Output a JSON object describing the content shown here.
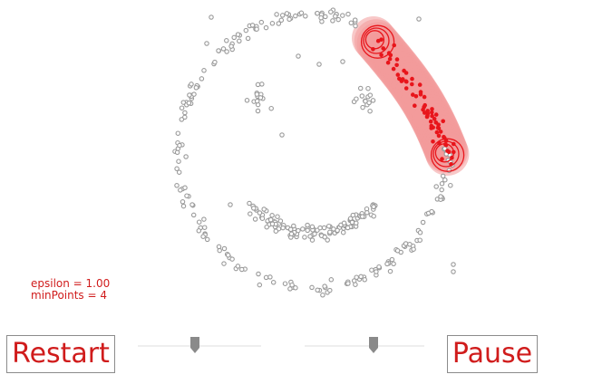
{
  "params": {
    "epsilon_label": "epsilon = 1.00",
    "minpoints_label": "minPoints = 4"
  },
  "controls": {
    "restart_label": "Restart",
    "pause_label": "Pause",
    "epsilon_slider": {
      "value": 0.46
    },
    "minpoints_slider": {
      "value": 0.58
    }
  },
  "colors": {
    "accent": "#d01c1c",
    "point_fill": "#ffffff",
    "point_stroke": "#9a9a9a",
    "cluster_point": "#e8151b",
    "cluster_halo": "#f29a9a",
    "slider_thumb": "#8a8a8a"
  }
}
